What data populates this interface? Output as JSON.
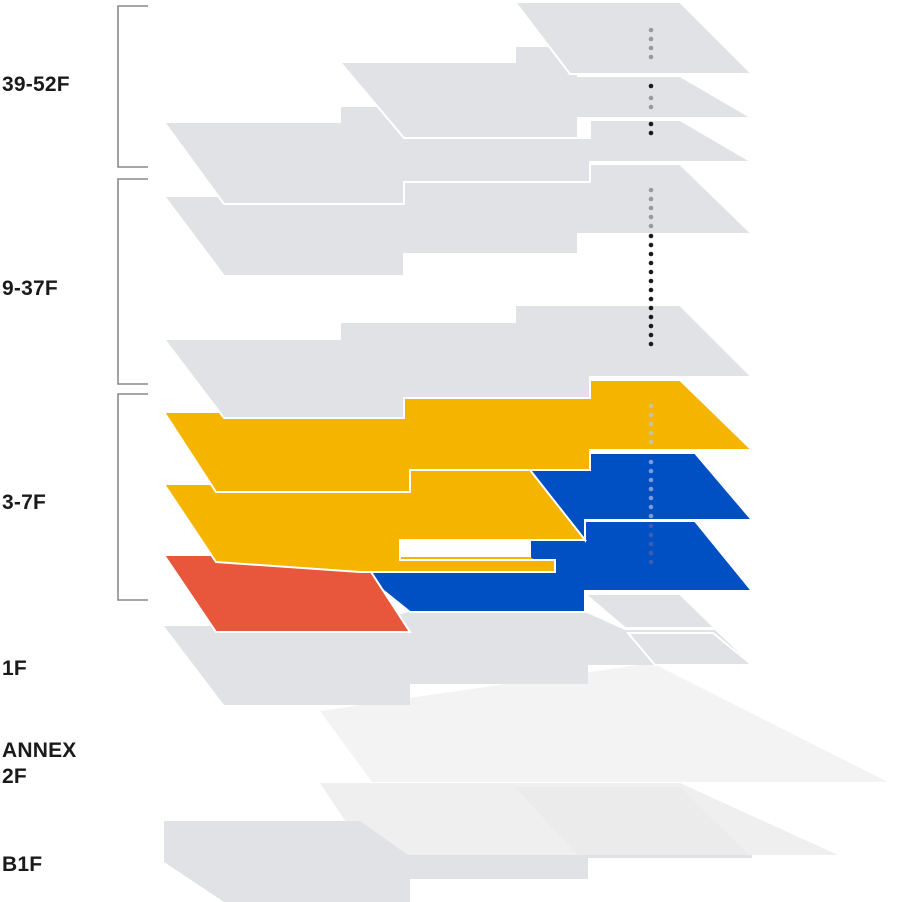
{
  "labels": {
    "floors_39_52": "39-52F",
    "floors_9_37": "9-37F",
    "floors_3_7": "3-7F",
    "floor_1": "1F",
    "annex_2": "ANNEX\n2F",
    "floor_b1": "B1F"
  },
  "colors": {
    "floor_gray": "#e0e2e5",
    "floor_light": "#ededee",
    "floor_lighter": "#f3f3f4",
    "highlight_yellow": "#f5b400",
    "highlight_blue": "#0050c3",
    "highlight_red": "#e8563b",
    "bracket": "#8a8a8a",
    "dot_dark": "#1a1a1a",
    "dot_gray": "#9a9a9a"
  }
}
